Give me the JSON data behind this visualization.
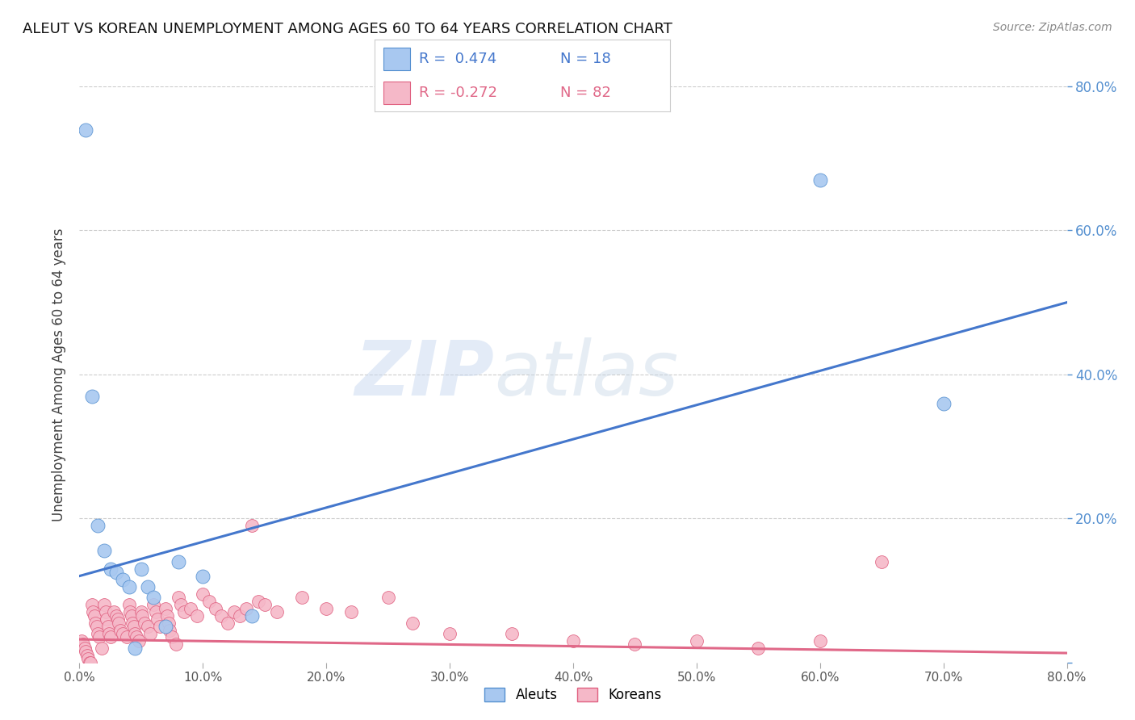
{
  "title": "ALEUT VS KOREAN UNEMPLOYMENT AMONG AGES 60 TO 64 YEARS CORRELATION CHART",
  "source": "Source: ZipAtlas.com",
  "ylabel": "Unemployment Among Ages 60 to 64 years",
  "xlim": [
    0,
    0.8
  ],
  "ylim": [
    0,
    0.8
  ],
  "xticks": [
    0.0,
    0.1,
    0.2,
    0.3,
    0.4,
    0.5,
    0.6,
    0.7,
    0.8
  ],
  "yticks": [
    0.0,
    0.2,
    0.4,
    0.6,
    0.8
  ],
  "aleuts_color": "#a8c8f0",
  "koreans_color": "#f5b8c8",
  "aleuts_edge_color": "#5590d0",
  "koreans_edge_color": "#e06080",
  "aleuts_line_color": "#4477cc",
  "koreans_line_color": "#e06888",
  "right_axis_color": "#5590d0",
  "background_color": "#ffffff",
  "grid_color": "#cccccc",
  "watermark_zip": "ZIP",
  "watermark_atlas": "atlas",
  "aleuts_R": 0.474,
  "aleuts_N": 18,
  "koreans_R": -0.272,
  "koreans_N": 82,
  "aleuts_line_x0": 0.0,
  "aleuts_line_y0": 0.12,
  "aleuts_line_x1": 0.8,
  "aleuts_line_y1": 0.5,
  "koreans_line_x0": 0.0,
  "koreans_line_y0": 0.032,
  "koreans_line_x1": 0.8,
  "koreans_line_y1": 0.013,
  "aleuts_x": [
    0.005,
    0.01,
    0.015,
    0.02,
    0.025,
    0.03,
    0.035,
    0.04,
    0.045,
    0.05,
    0.055,
    0.06,
    0.07,
    0.08,
    0.1,
    0.14,
    0.6,
    0.7
  ],
  "aleuts_y": [
    0.74,
    0.37,
    0.19,
    0.155,
    0.13,
    0.125,
    0.115,
    0.105,
    0.02,
    0.13,
    0.105,
    0.09,
    0.05,
    0.14,
    0.12,
    0.065,
    0.67,
    0.36
  ],
  "koreans_x": [
    0.002,
    0.003,
    0.004,
    0.005,
    0.006,
    0.007,
    0.008,
    0.009,
    0.01,
    0.011,
    0.012,
    0.013,
    0.014,
    0.015,
    0.016,
    0.018,
    0.02,
    0.021,
    0.022,
    0.023,
    0.024,
    0.025,
    0.028,
    0.03,
    0.031,
    0.032,
    0.033,
    0.035,
    0.038,
    0.04,
    0.041,
    0.042,
    0.043,
    0.044,
    0.045,
    0.046,
    0.048,
    0.05,
    0.051,
    0.053,
    0.055,
    0.057,
    0.06,
    0.062,
    0.063,
    0.065,
    0.07,
    0.071,
    0.072,
    0.073,
    0.075,
    0.078,
    0.08,
    0.082,
    0.085,
    0.09,
    0.095,
    0.1,
    0.105,
    0.11,
    0.115,
    0.12,
    0.125,
    0.13,
    0.135,
    0.14,
    0.145,
    0.15,
    0.16,
    0.18,
    0.2,
    0.22,
    0.25,
    0.27,
    0.3,
    0.35,
    0.4,
    0.45,
    0.5,
    0.55,
    0.6,
    0.65
  ],
  "koreans_y": [
    0.03,
    0.025,
    0.02,
    0.015,
    0.01,
    0.005,
    0.0,
    0.0,
    0.08,
    0.07,
    0.065,
    0.055,
    0.05,
    0.04,
    0.035,
    0.02,
    0.08,
    0.07,
    0.06,
    0.05,
    0.04,
    0.035,
    0.07,
    0.065,
    0.06,
    0.055,
    0.045,
    0.04,
    0.035,
    0.08,
    0.07,
    0.065,
    0.055,
    0.05,
    0.04,
    0.035,
    0.03,
    0.07,
    0.065,
    0.055,
    0.05,
    0.04,
    0.08,
    0.07,
    0.06,
    0.05,
    0.075,
    0.065,
    0.055,
    0.045,
    0.035,
    0.025,
    0.09,
    0.08,
    0.07,
    0.075,
    0.065,
    0.095,
    0.085,
    0.075,
    0.065,
    0.055,
    0.07,
    0.065,
    0.075,
    0.19,
    0.085,
    0.08,
    0.07,
    0.09,
    0.075,
    0.07,
    0.09,
    0.055,
    0.04,
    0.04,
    0.03,
    0.025,
    0.03,
    0.02,
    0.03,
    0.14
  ]
}
